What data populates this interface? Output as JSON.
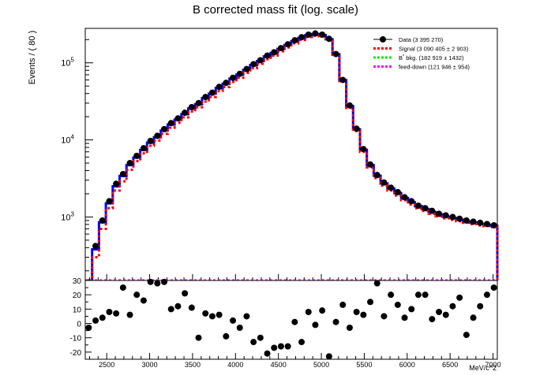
{
  "chart_data": [
    {
      "type": "histogram",
      "title": "B corrected mass fit (log. scale)",
      "ylabel": "Events / ( 80 )",
      "xlabel": "",
      "xlim": [
        2250,
        7050
      ],
      "ylim": [
        150,
        280000
      ],
      "log_y": true,
      "y_ticks": [
        {
          "value": 1000,
          "base": "10",
          "exp": "3"
        },
        {
          "value": 10000,
          "base": "10",
          "exp": "4"
        },
        {
          "value": 100000,
          "base": "10",
          "exp": "5"
        }
      ],
      "legend_position": "top-right",
      "bin_edges": [
        2250,
        2330,
        2410,
        2490,
        2570,
        2650,
        2730,
        2810,
        2890,
        2970,
        3050,
        3130,
        3210,
        3290,
        3370,
        3450,
        3530,
        3610,
        3690,
        3770,
        3850,
        3930,
        4010,
        4090,
        4170,
        4250,
        4330,
        4410,
        4490,
        4570,
        4650,
        4730,
        4810,
        4890,
        4970,
        5050,
        5130,
        5210,
        5290,
        5370,
        5450,
        5530,
        5610,
        5690,
        5770,
        5850,
        5930,
        6010,
        6090,
        6170,
        6250,
        6330,
        6410,
        6490,
        6570,
        6650,
        6730,
        6810,
        6890,
        6970,
        7050
      ],
      "series": [
        {
          "name": "Data (3 395 270)",
          "style": "points",
          "color": "#000000",
          "values": [
            150,
            420,
            900,
            1600,
            2700,
            3600,
            5000,
            6200,
            7800,
            9700,
            11300,
            13800,
            16500,
            19000,
            22500,
            26600,
            30000,
            36000,
            41000,
            48800,
            55000,
            64000,
            72000,
            83000,
            96000,
            108000,
            124000,
            137000,
            155000,
            174000,
            196000,
            215000,
            232000,
            240000,
            232000,
            205000,
            130000,
            60000,
            28000,
            14000,
            7600,
            4800,
            3500,
            2800,
            2400,
            2100,
            1800,
            1600,
            1400,
            1300,
            1200,
            1100,
            1050,
            1000,
            950,
            900,
            870,
            840,
            810,
            780
          ]
        },
        {
          "name": "Signal (3 090 405 ± 2 903)",
          "style": "step-dashed",
          "color": "#ff0000",
          "values": [
            150,
            300,
            700,
            1300,
            2200,
            2900,
            4100,
            5300,
            6700,
            8400,
            9800,
            12000,
            14400,
            16700,
            19600,
            23300,
            26500,
            31500,
            36000,
            43000,
            48500,
            56500,
            64000,
            74000,
            85000,
            97000,
            111000,
            124000,
            141000,
            158000,
            179000,
            198000,
            216000,
            226000,
            222000,
            198000,
            127000,
            58000,
            26000,
            13000,
            7000,
            4400,
            3200,
            2550,
            2200,
            1900,
            1650,
            1450,
            1300,
            1200,
            1100,
            1020,
            960,
            920,
            880,
            840,
            810,
            780,
            760,
            740
          ]
        },
        {
          "name": "B^{*} bkg. (182 919 ± 1432)",
          "style": "step-dashed",
          "color": "#00ee00",
          "values": [
            150,
            150,
            150,
            150,
            150,
            150,
            150,
            150,
            150,
            150,
            150,
            150,
            150,
            150,
            150,
            150,
            150,
            150,
            150,
            150,
            150,
            150,
            150,
            150,
            150,
            150,
            150,
            150,
            150,
            150,
            150,
            150,
            150,
            150,
            150,
            150,
            150,
            150,
            150,
            150,
            150,
            150,
            150,
            150,
            150,
            150,
            150,
            150,
            150,
            150,
            150,
            150,
            150,
            150,
            150,
            150,
            150,
            150,
            150,
            150
          ]
        },
        {
          "name": "feed-down (121 946 ± 954)",
          "style": "step-dashed",
          "color": "#ff00ff",
          "values": [
            150,
            150,
            150,
            150,
            150,
            150,
            150,
            150,
            150,
            150,
            150,
            150,
            150,
            150,
            150,
            150,
            150,
            150,
            150,
            150,
            150,
            150,
            150,
            150,
            150,
            150,
            150,
            150,
            150,
            150,
            150,
            150,
            150,
            150,
            150,
            150,
            150,
            150,
            150,
            150,
            150,
            150,
            150,
            150,
            150,
            150,
            150,
            150,
            150,
            150,
            150,
            150,
            150,
            150,
            150,
            150,
            150,
            150,
            150,
            150
          ]
        },
        {
          "name": "",
          "style": "step-solid",
          "color": "#0000ff",
          "values": [
            150,
            380,
            850,
            1500,
            2500,
            3400,
            4700,
            5900,
            7400,
            9200,
            10800,
            13200,
            15800,
            18300,
            21600,
            25600,
            29000,
            34800,
            39800,
            47200,
            53500,
            62200,
            70200,
            81000,
            93500,
            105500,
            121000,
            134000,
            152000,
            170000,
            191000,
            210000,
            228000,
            236000,
            229000,
            202000,
            129000,
            59500,
            27500,
            13700,
            7450,
            4700,
            3420,
            2720,
            2340,
            2040,
            1760,
            1550,
            1380,
            1270,
            1160,
            1080,
            1010,
            965,
            920,
            875,
            845,
            815,
            790,
            765
          ]
        }
      ]
    },
    {
      "type": "scatter",
      "title": "",
      "xlabel": "MeV/c^2",
      "ylabel": "",
      "xlim": [
        2250,
        7050
      ],
      "ylim": [
        -25,
        30
      ],
      "x_ticks": [
        2500,
        3000,
        3500,
        4000,
        4500,
        5000,
        5500,
        6000,
        6500,
        7000
      ],
      "y_ticks": [
        -20,
        -10,
        0,
        10,
        20,
        30
      ],
      "series": [
        {
          "name": "",
          "color": "#000000",
          "x": [
            2290,
            2370,
            2450,
            2530,
            2610,
            2690,
            2770,
            2850,
            2930,
            3010,
            3090,
            3170,
            3250,
            3330,
            3410,
            3490,
            3570,
            3650,
            3730,
            3810,
            3890,
            3970,
            4050,
            4130,
            4210,
            4290,
            4370,
            4450,
            4530,
            4610,
            4690,
            4770,
            4850,
            4930,
            5010,
            5090,
            5170,
            5250,
            5330,
            5410,
            5490,
            5570,
            5650,
            5730,
            5810,
            5890,
            5970,
            6050,
            6130,
            6210,
            6290,
            6370,
            6450,
            6530,
            6610,
            6690,
            6770,
            6850,
            6930,
            7010
          ],
          "y": [
            -3,
            2,
            4,
            8,
            7,
            25,
            6,
            20,
            16,
            29,
            28,
            29,
            10,
            12,
            21,
            11,
            -10,
            7,
            5,
            6,
            -9,
            2,
            -3,
            5,
            -13,
            -10,
            -21,
            -17,
            -16,
            -16,
            1,
            -13,
            8,
            -1,
            9,
            -23,
            1,
            13,
            -3,
            8,
            6,
            15,
            28,
            5,
            20,
            13,
            4,
            10,
            20,
            20,
            3,
            8,
            6,
            12,
            18,
            -8,
            4,
            12,
            20,
            25
          ]
        }
      ]
    }
  ]
}
